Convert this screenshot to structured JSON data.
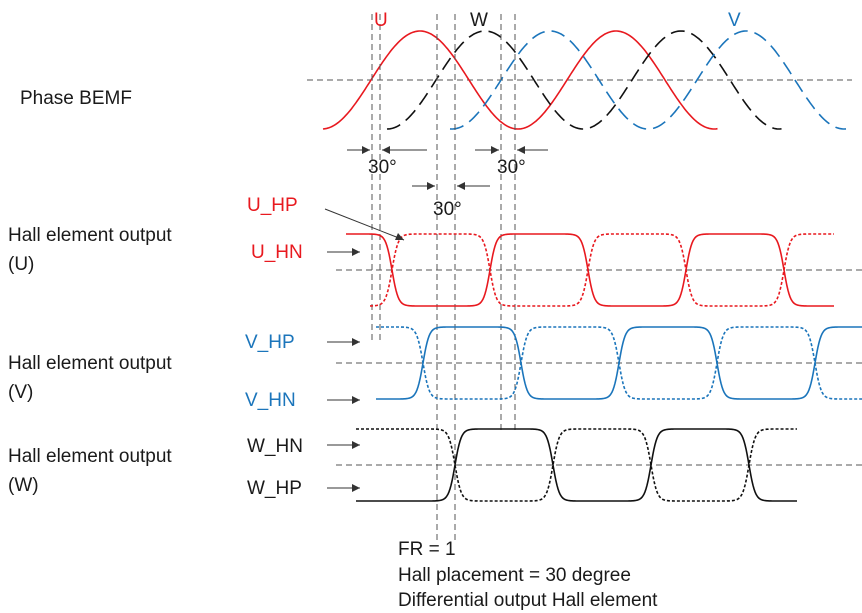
{
  "colors": {
    "u": "#e8191f",
    "v": "#1b75bb",
    "w": "#111111",
    "guide": "#555555",
    "text": "#1a1a1a"
  },
  "bemf": {
    "section_label": "Phase BEMF",
    "phase_labels": {
      "u": "U",
      "w": "W",
      "v": "V"
    }
  },
  "angles": {
    "left": "30°",
    "middle": "30°",
    "right": "30°"
  },
  "hall_u": {
    "title": "Hall element output",
    "subtitle": "(U)",
    "hp": "U_HP",
    "hn": "U_HN"
  },
  "hall_v": {
    "title": "Hall element output",
    "subtitle": "(V)",
    "hp": "V_HP",
    "hn": "V_HN"
  },
  "hall_w": {
    "title": "Hall element output",
    "subtitle": "(W)",
    "hn": "W_HN",
    "hp": "W_HP"
  },
  "notes": [
    "FR = 1",
    "Hall placement = 30 degree",
    "Differential output Hall element"
  ]
}
